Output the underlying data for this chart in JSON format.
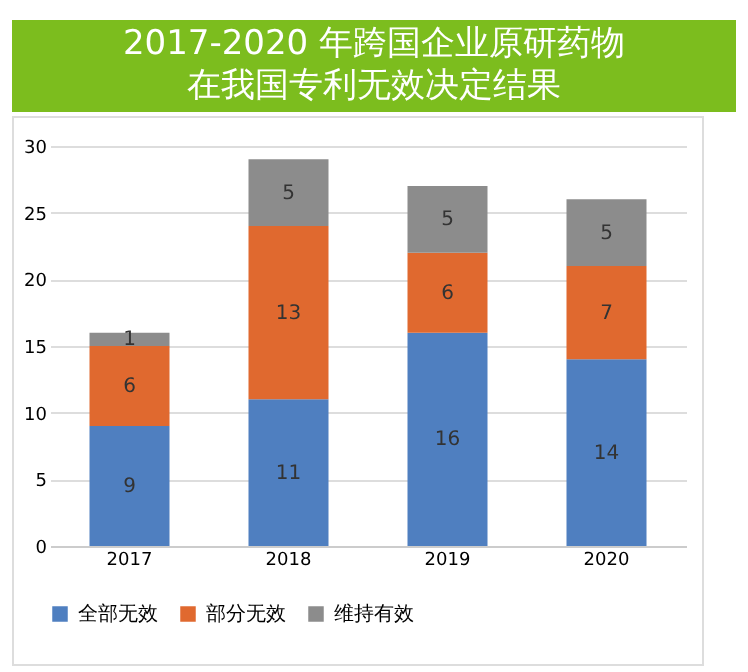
{
  "chart_data": {
    "type": "bar",
    "title": "2017-2020 年跨国企业原研药物在我国专利无效决定结果",
    "categories": [
      "2017",
      "2018",
      "2019",
      "2020"
    ],
    "stacked": true,
    "series": [
      {
        "name": "全部无效",
        "color": "#4f7fc0",
        "values": [
          9,
          11,
          16,
          14
        ]
      },
      {
        "name": "部分无效",
        "color": "#e0692f",
        "values": [
          6,
          13,
          6,
          7
        ]
      },
      {
        "name": "维持有效",
        "color": "#8c8c8c",
        "values": [
          1,
          5,
          5,
          5
        ]
      }
    ],
    "ylim": [
      0,
      30
    ],
    "yticks": [
      0,
      5,
      10,
      15,
      20,
      25,
      30
    ],
    "grid": "y",
    "legend": "bottom",
    "data_labels": true
  }
}
